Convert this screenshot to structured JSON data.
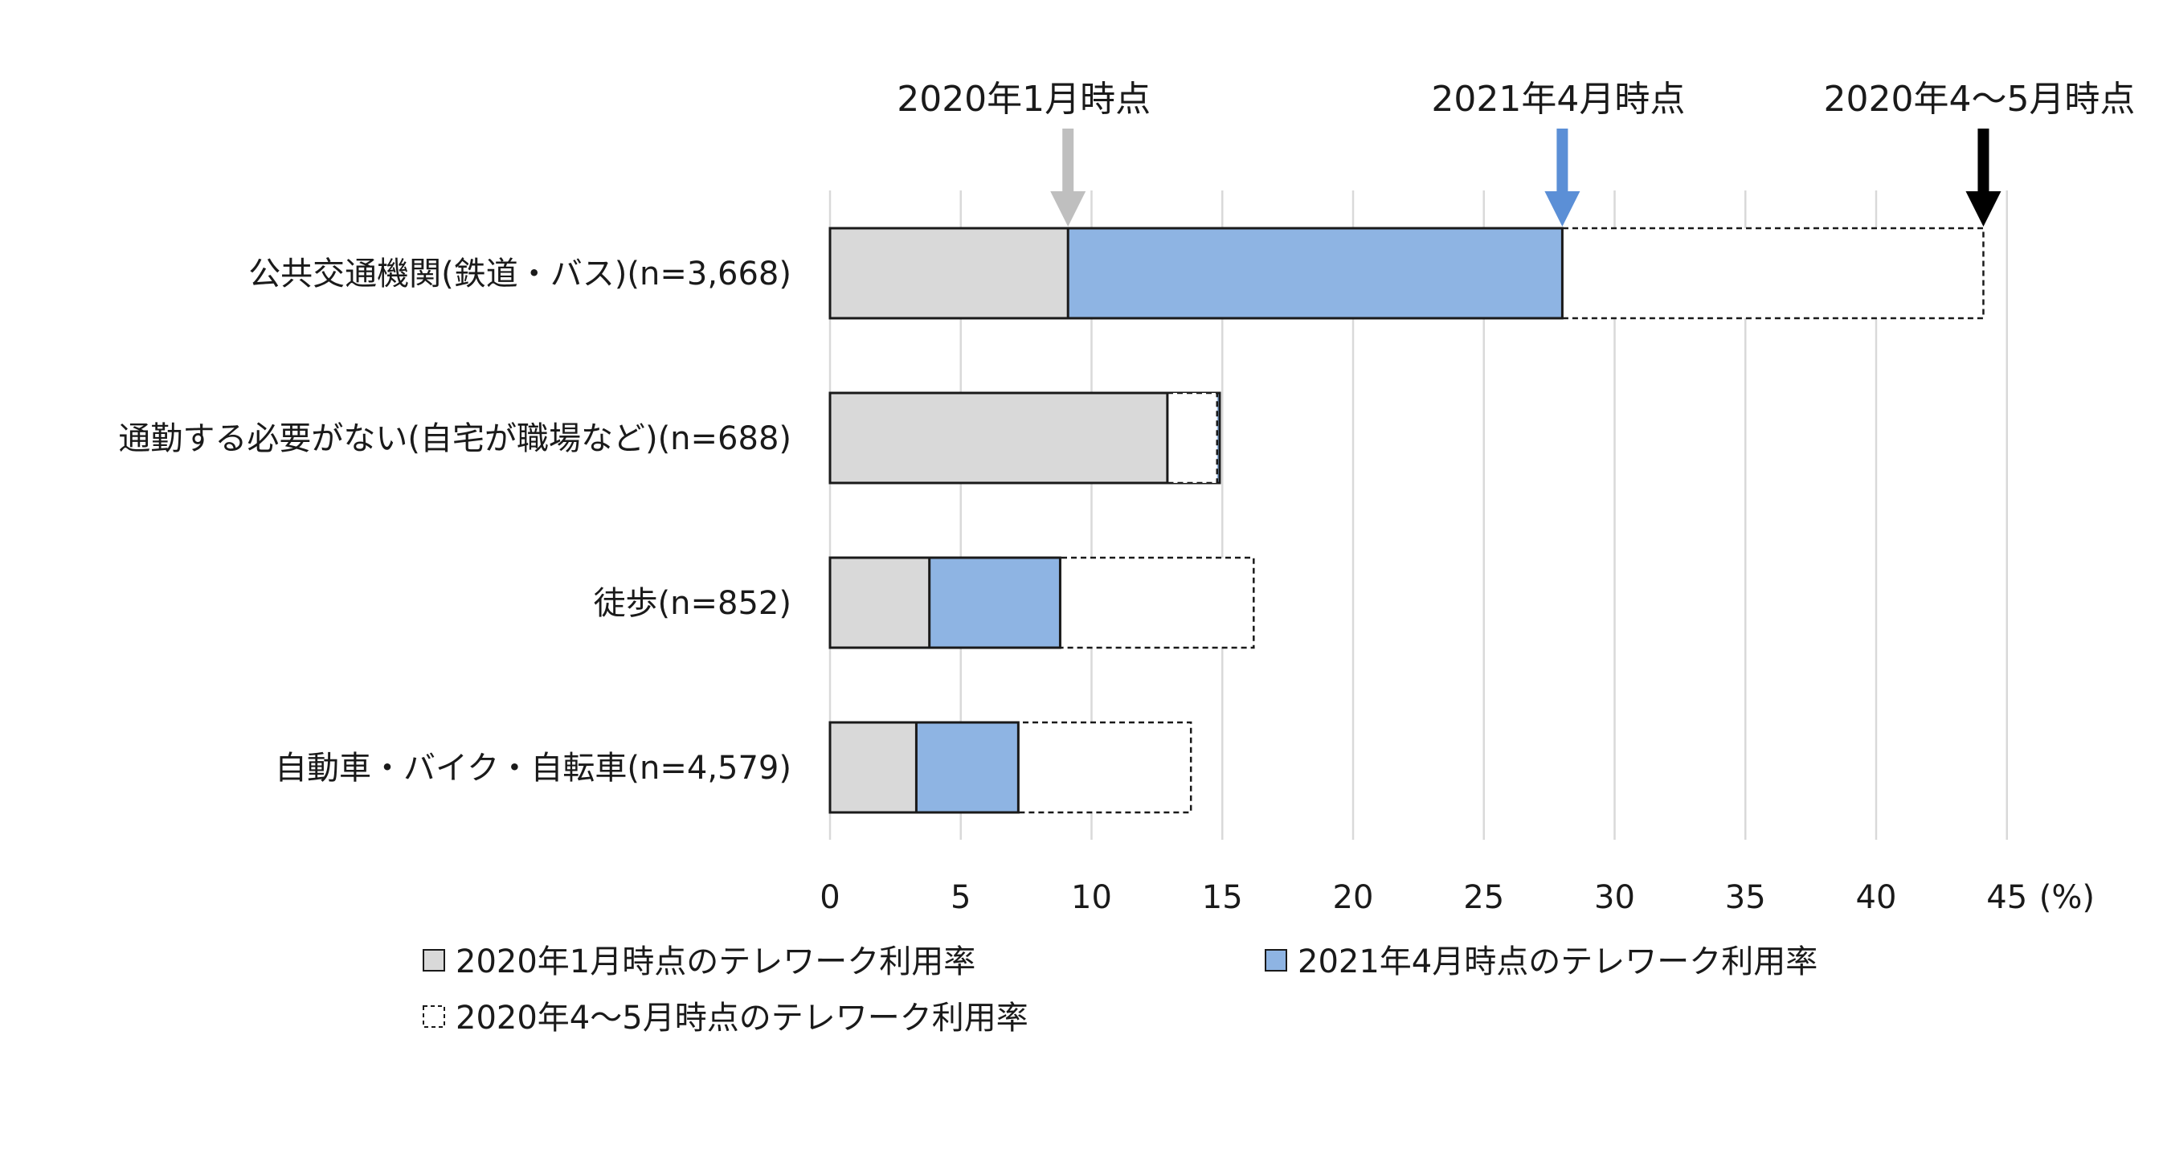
{
  "chart_data": {
    "type": "bar",
    "unit": "(%)",
    "xlim": [
      0,
      45
    ],
    "ticks": [
      0,
      5,
      10,
      15,
      20,
      25,
      30,
      35,
      40,
      45
    ],
    "grid": true,
    "categories": [
      "公共交通機関(鉄道・バス)(n=3,668)",
      "通勤する必要がない(自宅が職場など)(n=688)",
      "徒歩(n=852)",
      "自動車・バイク・自転車(n=4,579)"
    ],
    "series": [
      {
        "name": "2020年1月時点のテレワーク利用率",
        "values": [
          9.1,
          12.9,
          3.8,
          3.3
        ],
        "color": "#d9d9d9",
        "style": "solid"
      },
      {
        "name": "2021年4月時点のテレワーク利用率",
        "values": [
          28.0,
          14.9,
          8.8,
          7.2
        ],
        "color": "#8eb4e3",
        "style": "solid"
      },
      {
        "name": "2020年4～5月時点のテレワーク利用率",
        "values": [
          44.1,
          14.8,
          16.2,
          13.8
        ],
        "color": "#ffffff",
        "style": "dashed"
      }
    ],
    "annotations": [
      {
        "text": "2020年1月時点",
        "arrow_color": "#bfbfbf",
        "target_x": 9.1
      },
      {
        "text": "2021年4月時点",
        "arrow_color": "#5b8fd6",
        "target_x": 28.0
      },
      {
        "text": "2020年4～5月時点",
        "arrow_color": "#000000",
        "target_x": 44.1
      }
    ],
    "legend_position": "bottom"
  }
}
